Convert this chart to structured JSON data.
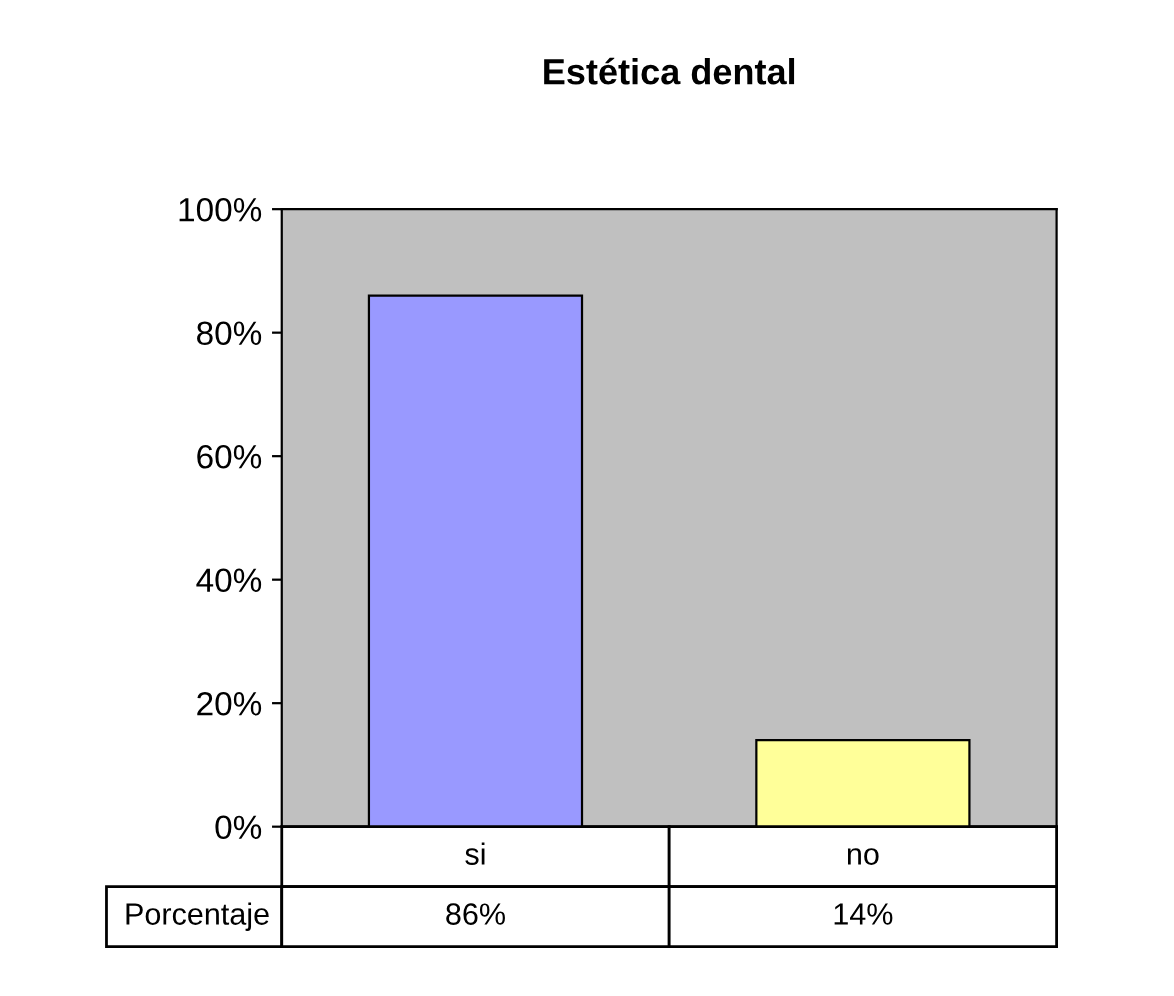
{
  "chart_data": {
    "type": "bar",
    "title": "Estética dental",
    "categories": [
      "si",
      "no"
    ],
    "series": [
      {
        "name": "Porcentaje",
        "colors": [
          "#9999ff",
          "#ffff99"
        ],
        "values": [
          86,
          14
        ],
        "value_labels": [
          "86%",
          "14%"
        ]
      }
    ],
    "ylim": [
      0,
      100
    ],
    "yticks": [
      {
        "value": 0,
        "label": "0%"
      },
      {
        "value": 20,
        "label": "20%"
      },
      {
        "value": 40,
        "label": "40%"
      },
      {
        "value": 60,
        "label": "60%"
      },
      {
        "value": 80,
        "label": "80%"
      },
      {
        "value": 100,
        "label": "100%"
      }
    ],
    "grid": false,
    "legend": false
  }
}
